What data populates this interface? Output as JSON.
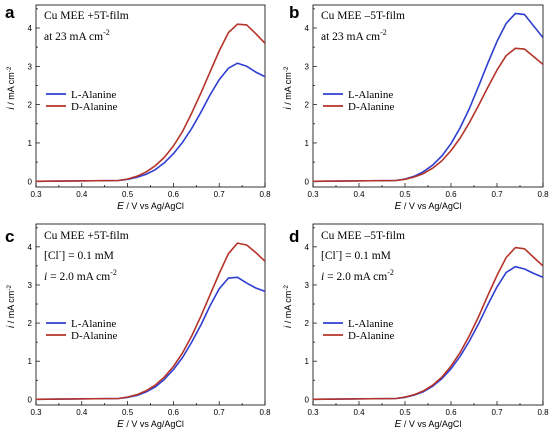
{
  "chart_data": [
    {
      "type": "line",
      "panel": "a",
      "annotation": [
        "Cu MEE +5T-film",
        "at 23 mA cm",
        "-2"
      ],
      "xlabel_italic": "E",
      "xlabel_rest": "/ V vs Ag/AgCl",
      "ylabel_italic": "i",
      "ylabel_rest": "/ mA cm",
      "ylabel_sup": "-2",
      "xlim": [
        0.3,
        0.8
      ],
      "ylim": [
        -0.15,
        4.6
      ],
      "x_ticks": [
        "0.3",
        "0.4",
        "0.5",
        "0.6",
        "0.7",
        "0.8"
      ],
      "y_ticks": [
        "0",
        "1",
        "2",
        "3",
        "4"
      ],
      "series": [
        {
          "name": "L-Alanine",
          "color": "#2f3fd0",
          "x": [
            0.3,
            0.48,
            0.5,
            0.52,
            0.54,
            0.56,
            0.58,
            0.6,
            0.62,
            0.64,
            0.66,
            0.68,
            0.7,
            0.72,
            0.74,
            0.76,
            0.78,
            0.8
          ],
          "y": [
            0,
            0.02,
            0.05,
            0.1,
            0.18,
            0.3,
            0.48,
            0.72,
            1.02,
            1.38,
            1.8,
            2.25,
            2.65,
            2.95,
            3.08,
            3.0,
            2.85,
            2.73
          ]
        },
        {
          "name": "D-Alanine",
          "color": "#b5342a",
          "x": [
            0.3,
            0.48,
            0.5,
            0.52,
            0.54,
            0.56,
            0.58,
            0.6,
            0.62,
            0.64,
            0.66,
            0.68,
            0.7,
            0.72,
            0.74,
            0.76,
            0.78,
            0.8
          ],
          "y": [
            0,
            0.02,
            0.06,
            0.13,
            0.24,
            0.4,
            0.62,
            0.92,
            1.3,
            1.78,
            2.3,
            2.85,
            3.4,
            3.88,
            4.1,
            4.08,
            3.85,
            3.6
          ]
        }
      ]
    },
    {
      "type": "line",
      "panel": "b",
      "annotation": [
        "Cu MEE –5T-film",
        "at 23 mA cm",
        "-2"
      ],
      "xlabel_italic": "E",
      "xlabel_rest": "/ V vs Ag/AgCl",
      "ylabel_italic": "i",
      "ylabel_rest": "/ mA cm",
      "ylabel_sup": "-2",
      "xlim": [
        0.3,
        0.8
      ],
      "ylim": [
        -0.15,
        4.6
      ],
      "x_ticks": [
        "0.3",
        "0.4",
        "0.5",
        "0.6",
        "0.7",
        "0.8"
      ],
      "y_ticks": [
        "0",
        "1",
        "2",
        "3",
        "4"
      ],
      "series": [
        {
          "name": "L-Alanine",
          "color": "#2f3fd0",
          "x": [
            0.3,
            0.48,
            0.5,
            0.52,
            0.54,
            0.56,
            0.58,
            0.6,
            0.62,
            0.64,
            0.66,
            0.68,
            0.7,
            0.72,
            0.74,
            0.76,
            0.78,
            0.8
          ],
          "y": [
            0,
            0.02,
            0.06,
            0.13,
            0.25,
            0.42,
            0.66,
            0.98,
            1.4,
            1.9,
            2.48,
            3.08,
            3.65,
            4.12,
            4.38,
            4.35,
            4.05,
            3.75
          ]
        },
        {
          "name": "D-Alanine",
          "color": "#b5342a",
          "x": [
            0.3,
            0.48,
            0.5,
            0.52,
            0.54,
            0.56,
            0.58,
            0.6,
            0.62,
            0.64,
            0.66,
            0.68,
            0.7,
            0.72,
            0.74,
            0.76,
            0.78,
            0.8
          ],
          "y": [
            0,
            0.02,
            0.05,
            0.11,
            0.2,
            0.34,
            0.53,
            0.8,
            1.13,
            1.53,
            1.98,
            2.45,
            2.9,
            3.28,
            3.47,
            3.45,
            3.25,
            3.05
          ]
        }
      ]
    },
    {
      "type": "line",
      "panel": "c",
      "annotation": [
        "Cu MEE +5T-film",
        "[Cl",
        "-",
        "] = 0.1 mM",
        "i",
        " = 2.0 mA cm",
        "-2"
      ],
      "xlabel_italic": "E",
      "xlabel_rest": "/ V vs Ag/AgCl",
      "ylabel_italic": "i",
      "ylabel_rest": "/ mA cm",
      "ylabel_sup": "-2",
      "xlim": [
        0.3,
        0.8
      ],
      "ylim": [
        -0.15,
        4.6
      ],
      "x_ticks": [
        "0.3",
        "0.4",
        "0.5",
        "0.6",
        "0.7",
        "0.8"
      ],
      "y_ticks": [
        "0",
        "1",
        "2",
        "3",
        "4"
      ],
      "series": [
        {
          "name": "L-Alanine",
          "color": "#2f3fd0",
          "x": [
            0.3,
            0.48,
            0.5,
            0.52,
            0.54,
            0.56,
            0.58,
            0.6,
            0.62,
            0.64,
            0.66,
            0.68,
            0.7,
            0.72,
            0.74,
            0.76,
            0.78,
            0.8
          ],
          "y": [
            0,
            0.02,
            0.05,
            0.1,
            0.19,
            0.32,
            0.52,
            0.78,
            1.1,
            1.5,
            1.95,
            2.45,
            2.9,
            3.18,
            3.2,
            3.05,
            2.92,
            2.83
          ]
        },
        {
          "name": "D-Alanine",
          "color": "#b5342a",
          "x": [
            0.3,
            0.48,
            0.5,
            0.52,
            0.54,
            0.56,
            0.58,
            0.6,
            0.62,
            0.64,
            0.66,
            0.68,
            0.7,
            0.72,
            0.74,
            0.76,
            0.78,
            0.8
          ],
          "y": [
            0,
            0.02,
            0.06,
            0.12,
            0.22,
            0.37,
            0.58,
            0.86,
            1.22,
            1.66,
            2.18,
            2.74,
            3.3,
            3.82,
            4.1,
            4.05,
            3.85,
            3.62
          ]
        }
      ]
    },
    {
      "type": "line",
      "panel": "d",
      "annotation": [
        "Cu MEE –5T-film",
        "[Cl",
        "-",
        "] = 0.1 mM",
        "i",
        " = 2.0 mA cm",
        "-2"
      ],
      "xlabel_italic": "E",
      "xlabel_rest": "/ V vs Ag/AgCl",
      "ylabel_italic": "i",
      "ylabel_rest": "/ mA cm",
      "ylabel_sup": "-2",
      "xlim": [
        0.3,
        0.8
      ],
      "ylim": [
        -0.15,
        4.6
      ],
      "x_ticks": [
        "0.3",
        "0.4",
        "0.5",
        "0.6",
        "0.7",
        "0.8"
      ],
      "y_ticks": [
        "0",
        "1",
        "2",
        "3",
        "4"
      ],
      "series": [
        {
          "name": "L-Alanine",
          "color": "#2f3fd0",
          "x": [
            0.3,
            0.48,
            0.5,
            0.52,
            0.54,
            0.56,
            0.58,
            0.6,
            0.62,
            0.64,
            0.66,
            0.68,
            0.7,
            0.72,
            0.74,
            0.76,
            0.78,
            0.8
          ],
          "y": [
            0,
            0.02,
            0.05,
            0.11,
            0.2,
            0.34,
            0.54,
            0.8,
            1.13,
            1.53,
            1.98,
            2.48,
            2.95,
            3.33,
            3.48,
            3.42,
            3.3,
            3.2
          ]
        },
        {
          "name": "D-Alanine",
          "color": "#b5342a",
          "x": [
            0.3,
            0.48,
            0.5,
            0.52,
            0.54,
            0.56,
            0.58,
            0.6,
            0.62,
            0.64,
            0.66,
            0.68,
            0.7,
            0.72,
            0.74,
            0.76,
            0.78,
            0.8
          ],
          "y": [
            0,
            0.02,
            0.06,
            0.12,
            0.22,
            0.37,
            0.58,
            0.87,
            1.23,
            1.67,
            2.17,
            2.72,
            3.25,
            3.72,
            3.98,
            3.95,
            3.72,
            3.5
          ]
        }
      ]
    }
  ]
}
